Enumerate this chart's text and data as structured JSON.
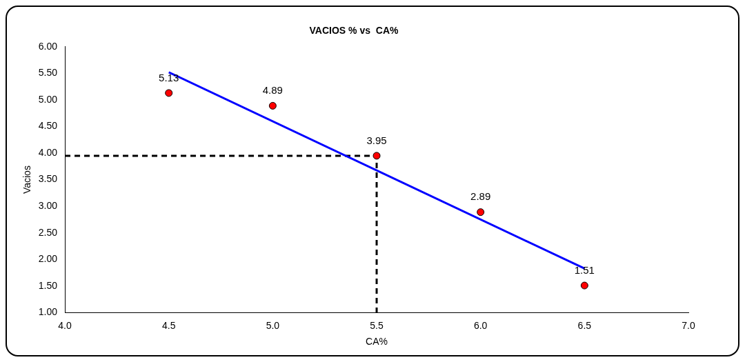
{
  "chart_data": {
    "type": "scatter",
    "title": "VACIOS % vs  CA%",
    "xlabel": "CA%",
    "ylabel": "Vacios",
    "x": [
      4.5,
      5.0,
      5.5,
      6.0,
      6.5
    ],
    "series": [
      {
        "color": "#ff0000",
        "values": [
          5.13,
          4.89,
          3.95,
          2.89,
          1.51
        ],
        "marker": "circle",
        "data_labels": true
      },
      {
        "type": "line",
        "color": "#0000ff",
        "x": [
          4.5,
          6.5
        ],
        "values": [
          5.52,
          1.83
        ],
        "marker": "none",
        "line_style": "solid"
      },
      {
        "type": "line",
        "color": "#000000",
        "x": [
          4.0,
          5.5,
          5.5
        ],
        "values": [
          3.95,
          3.95,
          1.0
        ],
        "marker": "none",
        "line_style": "dashed"
      }
    ],
    "xlim": [
      4,
      7
    ],
    "xticks": [
      {
        "value": 4,
        "label": "4.0"
      },
      {
        "value": 4.5,
        "label": "4.5"
      },
      {
        "value": 5,
        "label": "5.0"
      },
      {
        "value": 5.5,
        "label": "5.5"
      },
      {
        "value": 6,
        "label": "6.0"
      },
      {
        "value": 6.5,
        "label": "6.5"
      },
      {
        "value": 7,
        "label": "7.0"
      }
    ],
    "ylim": [
      1,
      6
    ],
    "yticks": [
      {
        "value": 1,
        "label": "1.00"
      },
      {
        "value": 1.5,
        "label": "1.50"
      },
      {
        "value": 2,
        "label": "2.00"
      },
      {
        "value": 2.5,
        "label": "2.50"
      },
      {
        "value": 3,
        "label": "3.00"
      },
      {
        "value": 3.5,
        "label": "3.50"
      },
      {
        "value": 4,
        "label": "4.00"
      },
      {
        "value": 4.5,
        "label": "4.50"
      },
      {
        "value": 5,
        "label": "5.00"
      },
      {
        "value": 5.5,
        "label": "5.50"
      },
      {
        "value": 6,
        "label": "6.00"
      }
    ],
    "grid": false,
    "legend": false
  }
}
